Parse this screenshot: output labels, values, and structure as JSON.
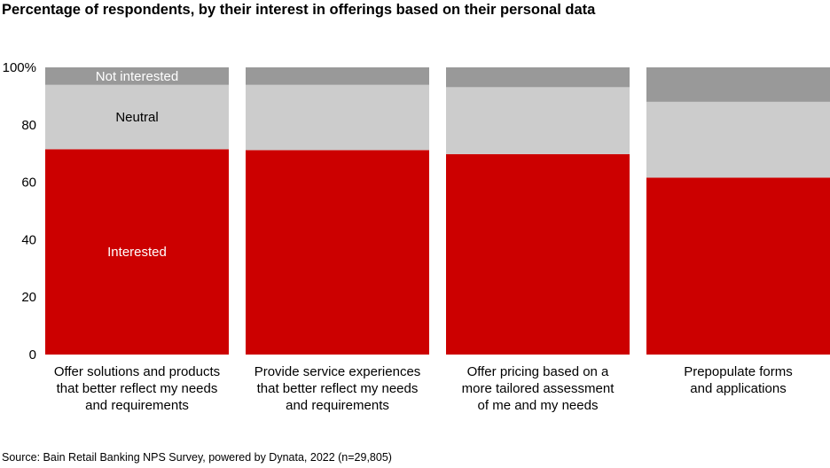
{
  "chart_data": {
    "type": "bar",
    "stacked": true,
    "normalized": true,
    "title": "Percentage of respondents, by their interest in offerings based on their personal data",
    "categories": [
      [
        "Offer solutions and products",
        "that better reflect my needs",
        "and requirements"
      ],
      [
        "Provide service experiences",
        "that better reflect my needs",
        "and requirements"
      ],
      [
        "Offer pricing based on a",
        "more tailored assessment",
        "of me and my needs"
      ],
      [
        "Prepopulate forms",
        "and applications"
      ]
    ],
    "series": [
      {
        "name": "Interested",
        "color": "#cc0000",
        "label_color": "#ffffff",
        "values": [
          71.5,
          71.2,
          69.8,
          61.6
        ]
      },
      {
        "name": "Neutral",
        "color": "#cccccc",
        "label_color": "#000000",
        "values": [
          22.4,
          22.7,
          23.3,
          26.4
        ]
      },
      {
        "name": "Not interested",
        "color": "#999999",
        "label_color": "#ffffff",
        "values": [
          6.1,
          6.1,
          6.9,
          12.0
        ]
      }
    ],
    "series_labels_on_bar": 0,
    "yticks": [
      "0",
      "20",
      "40",
      "60",
      "80",
      "100%"
    ],
    "ytick_values": [
      0,
      20,
      40,
      60,
      80,
      100
    ],
    "ylim": [
      0,
      100
    ],
    "xlabel": "",
    "ylabel": "",
    "grid": false,
    "legend": "inline labels on first bar"
  },
  "source": "Source: Bain Retail Banking NPS Survey, powered by Dynata, 2022 (n=29,805)"
}
